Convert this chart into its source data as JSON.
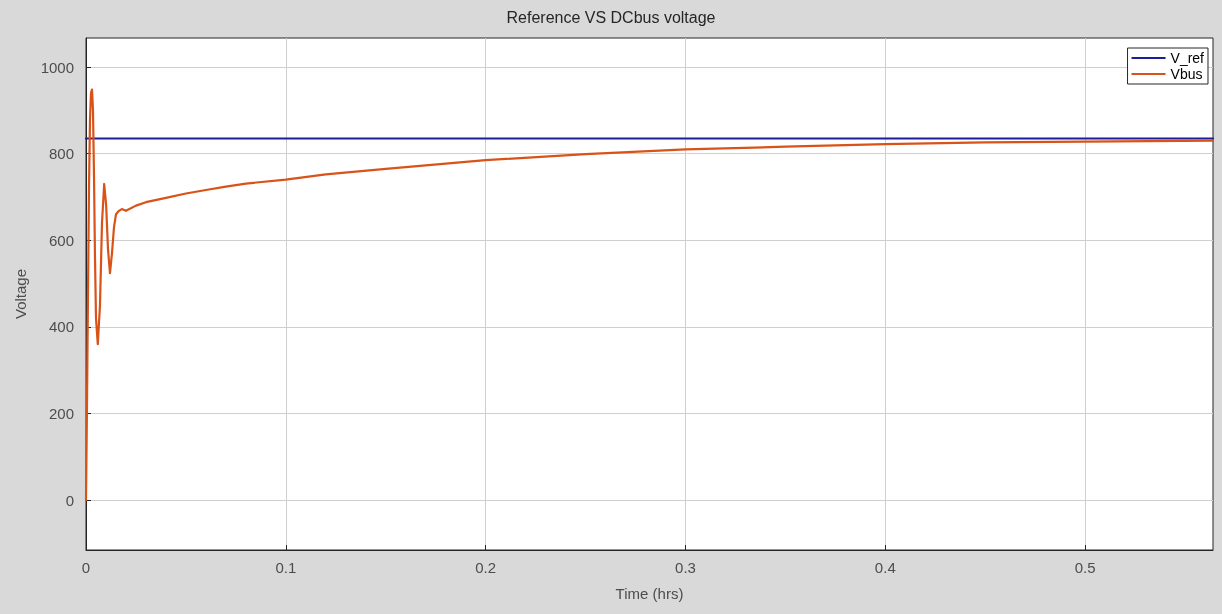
{
  "chart_data": {
    "type": "line",
    "title": "Reference VS DCbus voltage",
    "xlabel": "Time (hrs)",
    "ylabel": "Voltage",
    "xlim": [
      0,
      0.564
    ],
    "xticks": [
      0,
      0.1,
      0.2,
      0.3,
      0.4,
      0.5
    ],
    "ylim": [
      -115,
      1067
    ],
    "yticks": [
      0,
      200,
      400,
      600,
      800,
      1000
    ],
    "grid": true,
    "legend": "top right",
    "marker": "none",
    "line_style": "solid",
    "series": [
      {
        "name": "V_ref",
        "color": "#1c1c9c",
        "x": [
          0,
          0.564
        ],
        "values": [
          835,
          835
        ]
      },
      {
        "name": "Vbus",
        "color": "#d95319",
        "x": [
          0,
          0.0005,
          0.001,
          0.0015,
          0.002,
          0.0025,
          0.003,
          0.0035,
          0.004,
          0.0045,
          0.005,
          0.0059,
          0.007,
          0.008,
          0.0091,
          0.0101,
          0.011,
          0.012,
          0.013,
          0.014,
          0.015,
          0.0165,
          0.0179,
          0.02,
          0.025,
          0.03,
          0.04,
          0.05,
          0.06,
          0.07,
          0.08,
          0.1,
          0.12,
          0.15,
          0.2,
          0.25,
          0.3,
          0.35,
          0.4,
          0.45,
          0.5,
          0.564
        ],
        "values": [
          0,
          220,
          480,
          720,
          880,
          940,
          948,
          900,
          750,
          560,
          420,
          360,
          450,
          640,
          730,
          680,
          580,
          524,
          570,
          630,
          660,
          668,
          672,
          668,
          680,
          688,
          698,
          708,
          716,
          724,
          731,
          740,
          752,
          765,
          785,
          799,
          810,
          816,
          822,
          826,
          828,
          830
        ]
      }
    ]
  }
}
